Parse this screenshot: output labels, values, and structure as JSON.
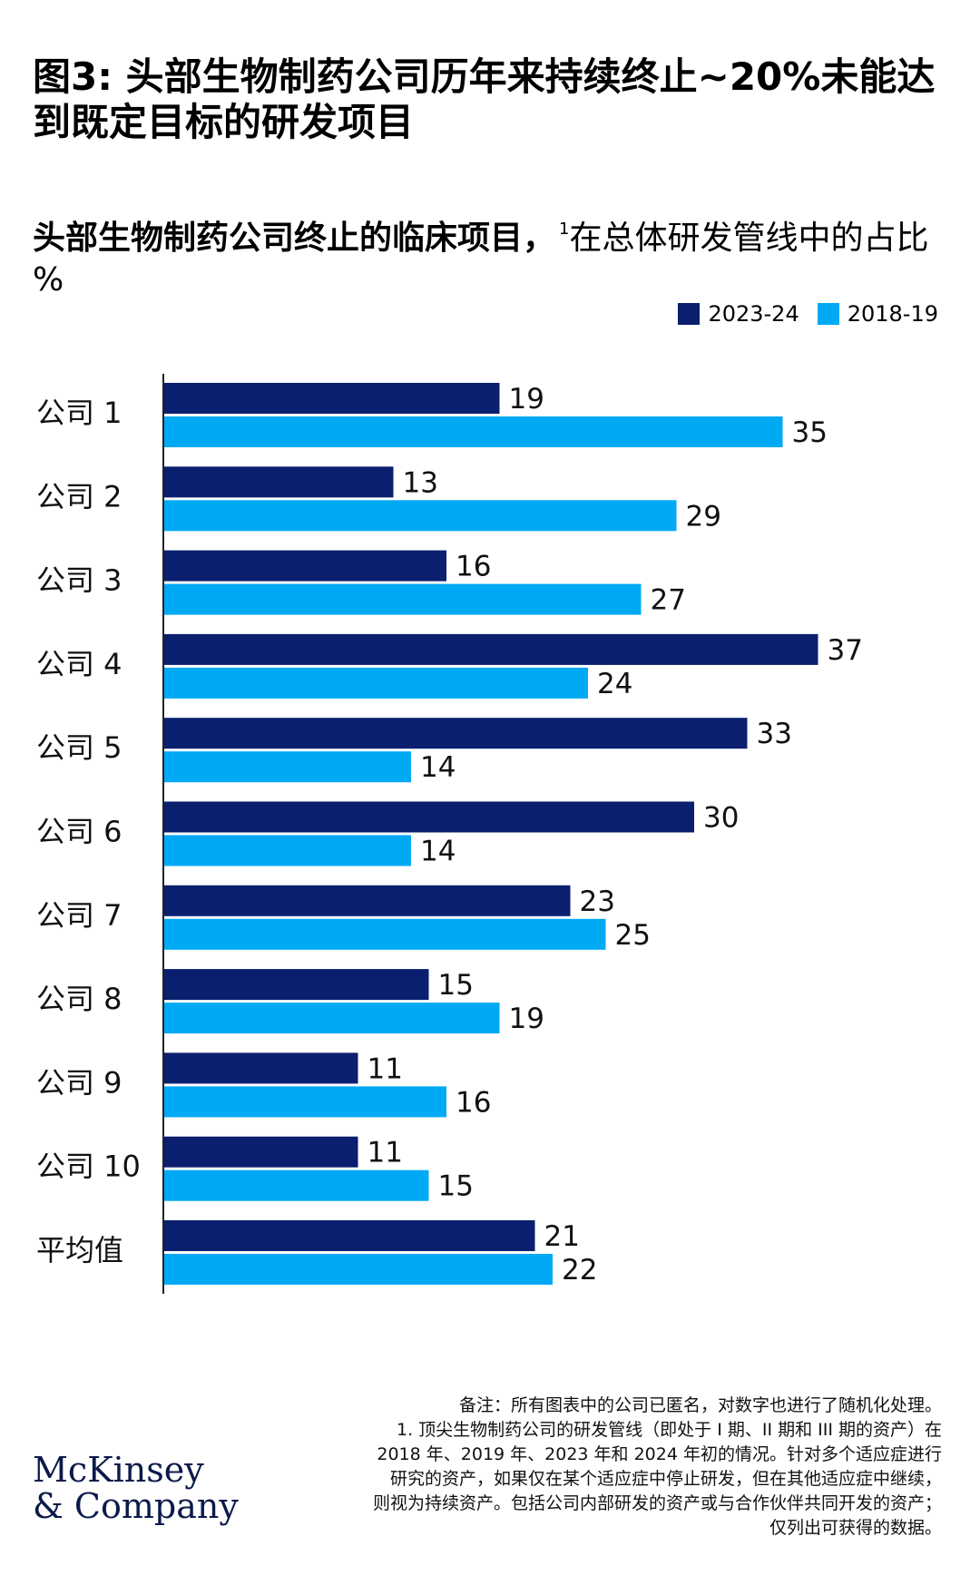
{
  "title": "图3: 头部生物制药公司历年来持续终止~20%未能达到既定目标的研发项目",
  "subtitle": {
    "main": "头部生物制药公司终止的临床项目，",
    "sup": "1",
    "rest": "在总体研发管线中的占比 %"
  },
  "legend": [
    {
      "label": "2023-24",
      "color": "#0a1f6e"
    },
    {
      "label": "2018-19",
      "color": "#00a9f4"
    }
  ],
  "chart_data": {
    "type": "bar",
    "orientation": "horizontal",
    "categories": [
      "公司 1",
      "公司 2",
      "公司 3",
      "公司 4",
      "公司 5",
      "公司 6",
      "公司 7",
      "公司 8",
      "公司 9",
      "公司 10",
      "平均值"
    ],
    "series": [
      {
        "name": "2023-24",
        "color": "#0a1f6e",
        "values": [
          19,
          13,
          16,
          37,
          33,
          30,
          23,
          15,
          11,
          11,
          21
        ]
      },
      {
        "name": "2018-19",
        "color": "#00a9f4",
        "values": [
          35,
          29,
          27,
          24,
          14,
          14,
          25,
          19,
          16,
          15,
          22
        ]
      }
    ],
    "xlim": [
      0,
      40
    ],
    "grid": false,
    "data_labels": true,
    "legend_position": "top-right"
  },
  "footnotes": {
    "note": "备注：所有图表中的公司已匿名，对数字也进行了随机化处理。",
    "lines": [
      "1.   顶尖生物制药公司的研发管线（即处于 I 期、II 期和 III 期的资产）在",
      "2018 年、2019 年、2023 年和 2024 年初的情况。针对多个适应症进行",
      "研究的资产，如果仅在某个适应症中停止研发，但在其他适应症中继续，",
      "则视为持续资产。包括公司内部研发的资产或与合作伙伴共同开发的资产；",
      "仅列出可获得的数据。"
    ]
  },
  "logo": {
    "line1": "McKinsey",
    "line2": "& Company"
  }
}
